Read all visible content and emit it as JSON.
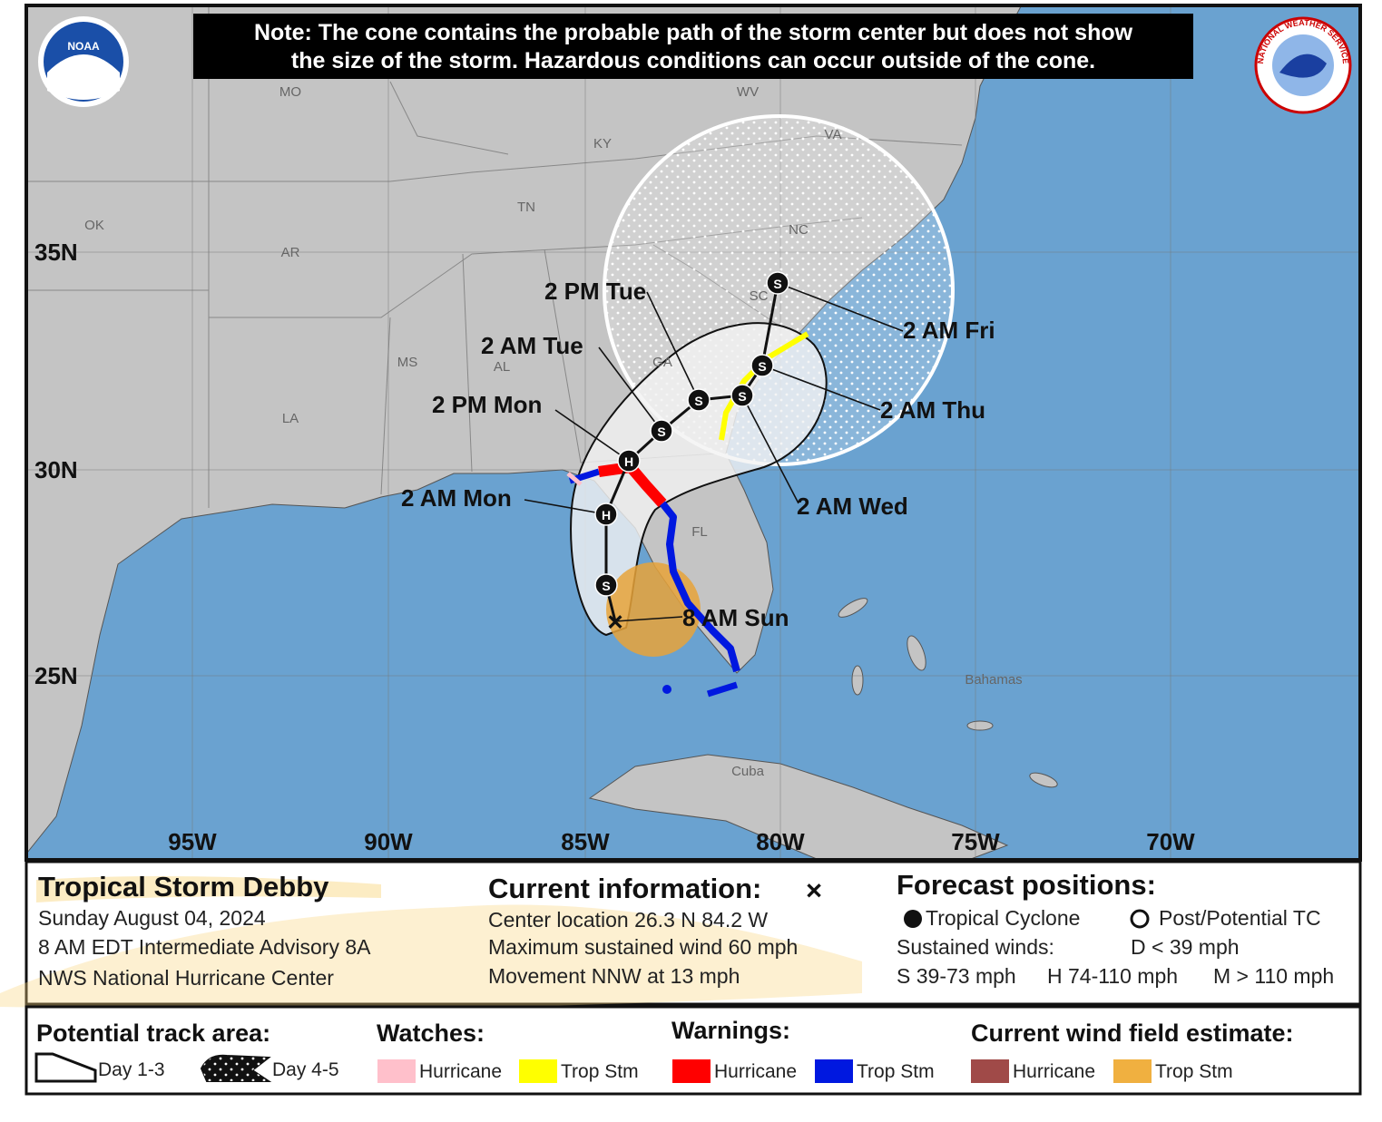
{
  "header": {
    "note": [
      "Note: The cone contains the probable path of the storm center but does not show",
      "the size of the storm. Hazardous conditions can occur outside of the cone."
    ],
    "noaa_logo": "NOAA",
    "nws_logo": "NATIONAL WEATHER SERVICE"
  },
  "map": {
    "regions": [
      "MO",
      "WV",
      "KY",
      "VA",
      "OK",
      "TN",
      "NC",
      "AR",
      "SC",
      "GA",
      "MS",
      "AL",
      "LA",
      "FL",
      "Bahamas",
      "Cuba"
    ],
    "latitudes": [
      "35N",
      "30N",
      "25N"
    ],
    "longitudes": [
      "95W",
      "90W",
      "85W",
      "80W",
      "75W",
      "70W"
    ],
    "current": {
      "symbol": "×",
      "label": "8 AM Sun"
    },
    "track": [
      {
        "symbol": "S"
      },
      {
        "symbol": "H",
        "label": "2 AM Mon"
      },
      {
        "symbol": "H",
        "label": "2 PM Mon"
      },
      {
        "symbol": "S",
        "label": "2 AM Tue"
      },
      {
        "symbol": "S",
        "label": "2 PM Tue"
      },
      {
        "symbol": "S",
        "label": "2 AM Wed"
      },
      {
        "symbol": "S",
        "label": "2 AM Thu"
      },
      {
        "symbol": "S",
        "label": "2 AM Fri"
      }
    ]
  },
  "info": {
    "storm": {
      "name": "Tropical Storm Debby",
      "date": "Sunday August 04, 2024",
      "advisory": "8 AM EDT Intermediate Advisory 8A",
      "center": "NWS National Hurricane Center"
    },
    "current": {
      "title": "Current information:",
      "symbol": "×",
      "lines": [
        "Center location 26.3 N 84.2 W",
        "Maximum sustained wind 60 mph",
        "Movement NNW at 13 mph"
      ]
    },
    "forecast": {
      "title": "Forecast positions:",
      "tropical": "Tropical Cyclone",
      "post": "Post/Potential TC",
      "winds": "Sustained winds:",
      "d": "D < 39 mph",
      "s": "S 39-73 mph",
      "h": "H 74-110 mph",
      "m": "M > 110 mph"
    }
  },
  "legend": {
    "track_area": {
      "title": "Potential track area:",
      "day13": "Day 1-3",
      "day45": "Day 4-5"
    },
    "watches": {
      "title": "Watches:",
      "hurricane": "Hurricane",
      "trop": "Trop Stm"
    },
    "warnings": {
      "title": "Warnings:",
      "hurricane": "Hurricane",
      "trop": "Trop Stm"
    },
    "wind": {
      "title": "Current wind field estimate:",
      "hurricane": "Hurricane",
      "trop": "Trop Stm"
    }
  }
}
